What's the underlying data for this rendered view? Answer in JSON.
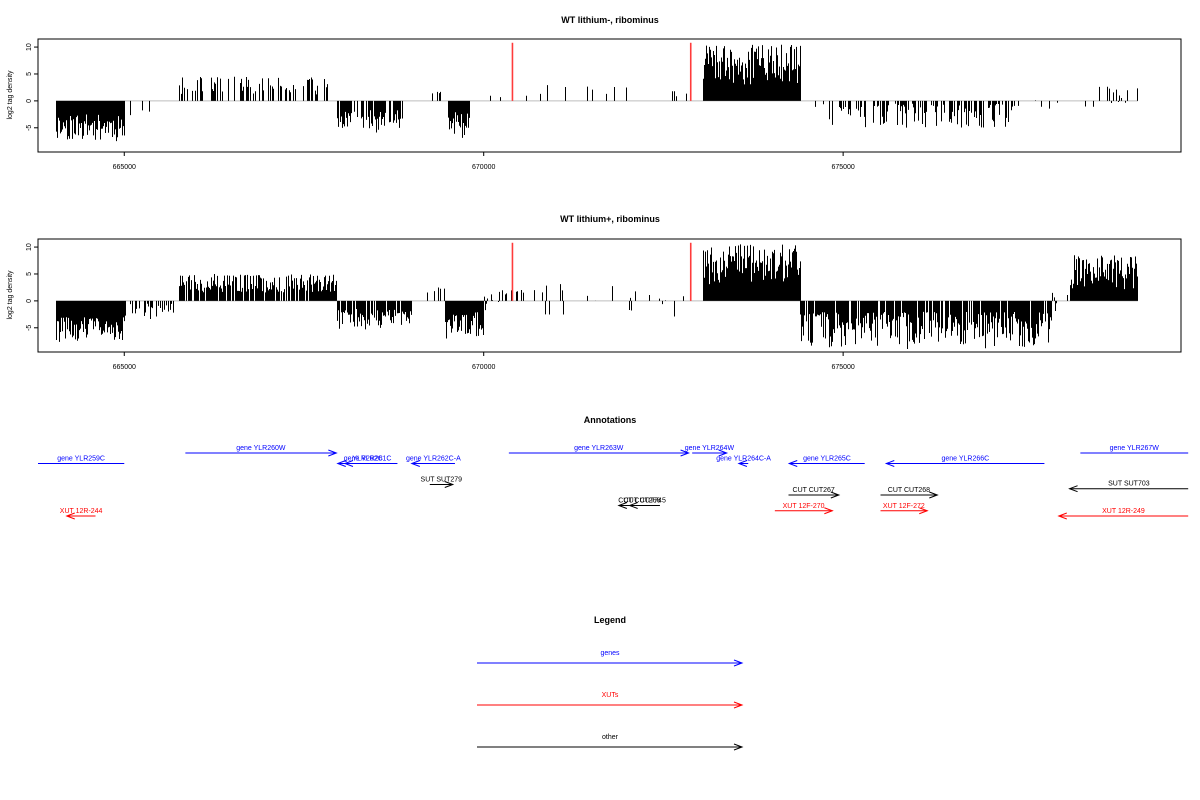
{
  "chart_data": [
    {
      "type": "bar",
      "title": "WT lithium-, ribominus",
      "ylabel": "log2 tag density",
      "xlim": [
        663800,
        679700
      ],
      "ylim": [
        -9.5,
        11.5
      ],
      "xticks": [
        665000,
        670000,
        675000
      ],
      "yticks": [
        -5,
        0,
        5,
        10
      ],
      "red_lines": [
        670400,
        672880
      ],
      "segments": [
        {
          "from": 664050,
          "to": 665000,
          "min": -7.5,
          "max": -2.5,
          "density": 1.0,
          "seed": 11
        },
        {
          "from": 665050,
          "to": 665400,
          "min": -3.0,
          "max": -1.0,
          "density": 0.12,
          "seed": 12
        },
        {
          "from": 665750,
          "to": 667950,
          "min": 1.0,
          "max": 4.5,
          "density": 0.35,
          "seed": 13
        },
        {
          "from": 667950,
          "to": 668900,
          "min": -6.0,
          "max": -1.5,
          "density": 0.55,
          "seed": 14
        },
        {
          "from": 669250,
          "to": 669400,
          "min": 1.0,
          "max": 2.3,
          "density": 0.2,
          "seed": 15
        },
        {
          "from": 669500,
          "to": 669800,
          "min": -7.0,
          "max": -2.0,
          "density": 1.0,
          "seed": 16
        },
        {
          "from": 669900,
          "to": 670350,
          "min": -1.5,
          "max": 1.2,
          "density": 0.1,
          "seed": 17
        },
        {
          "from": 670400,
          "to": 672200,
          "min": 0.5,
          "max": 3.0,
          "density": 0.06,
          "seed": 18
        },
        {
          "from": 672600,
          "to": 672900,
          "min": 0.5,
          "max": 2.0,
          "density": 0.1,
          "seed": 19
        },
        {
          "from": 673050,
          "to": 674400,
          "min": 3.0,
          "max": 10.5,
          "density": 1.0,
          "seed": 20
        },
        {
          "from": 674450,
          "to": 674800,
          "min": -1.5,
          "max": 0.5,
          "density": 0.15,
          "seed": 21
        },
        {
          "from": 674800,
          "to": 677500,
          "min": -5.0,
          "max": -0.5,
          "density": 0.45,
          "seed": 22
        },
        {
          "from": 677500,
          "to": 678000,
          "min": -3.0,
          "max": 0.8,
          "density": 0.12,
          "seed": 23
        },
        {
          "from": 678200,
          "to": 679100,
          "min": -1.5,
          "max": 3.0,
          "density": 0.2,
          "seed": 24
        }
      ]
    },
    {
      "type": "bar",
      "title": "WT lithium+, ribominus",
      "ylabel": "log2 tag density",
      "xlim": [
        663800,
        679700
      ],
      "ylim": [
        -9.5,
        11.5
      ],
      "xticks": [
        665000,
        670000,
        675000
      ],
      "yticks": [
        -5,
        0,
        5,
        10
      ],
      "red_lines": [
        670400,
        672880
      ],
      "segments": [
        {
          "from": 664050,
          "to": 665000,
          "min": -8.0,
          "max": -3.0,
          "density": 1.0,
          "seed": 31
        },
        {
          "from": 665000,
          "to": 665700,
          "min": -3.5,
          "max": -0.5,
          "density": 0.5,
          "seed": 32
        },
        {
          "from": 665750,
          "to": 667950,
          "min": 1.5,
          "max": 5.0,
          "density": 0.8,
          "seed": 33
        },
        {
          "from": 667950,
          "to": 669000,
          "min": -5.5,
          "max": -1.5,
          "density": 0.8,
          "seed": 34
        },
        {
          "from": 669200,
          "to": 669450,
          "min": 0.5,
          "max": 2.5,
          "density": 0.4,
          "seed": 35
        },
        {
          "from": 669450,
          "to": 670000,
          "min": -7.0,
          "max": -2.0,
          "density": 1.0,
          "seed": 36
        },
        {
          "from": 670000,
          "to": 670400,
          "min": -2.0,
          "max": 2.0,
          "density": 0.3,
          "seed": 37
        },
        {
          "from": 670400,
          "to": 672950,
          "min": -4.0,
          "max": 3.5,
          "density": 0.12,
          "seed": 38
        },
        {
          "from": 673050,
          "to": 674400,
          "min": 3.0,
          "max": 10.5,
          "density": 1.0,
          "seed": 39
        },
        {
          "from": 674400,
          "to": 677900,
          "min": -9.0,
          "max": -2.0,
          "density": 0.9,
          "seed": 40
        },
        {
          "from": 677900,
          "to": 678150,
          "min": -2.0,
          "max": 1.5,
          "density": 0.3,
          "seed": 41
        },
        {
          "from": 678150,
          "to": 679100,
          "min": 2.0,
          "max": 8.5,
          "density": 1.0,
          "seed": 42
        }
      ]
    }
  ],
  "annotations": {
    "title": "Annotations",
    "items": [
      {
        "label": "gene YLR259C",
        "from": 663800,
        "to": 665000,
        "row": 1,
        "dir": "none",
        "color": "#0000ff"
      },
      {
        "label": "gene YLR260W",
        "from": 665850,
        "to": 667950,
        "row": 0,
        "dir": "right",
        "color": "#0000ff"
      },
      {
        "label": "gene YLR261C",
        "from": 667970,
        "to": 668800,
        "row": 1,
        "dir": "left",
        "color": "#0000ff"
      },
      {
        "label": "YLR262C",
        "from": 668070,
        "to": 668700,
        "row": 1,
        "dir": "left",
        "color": "#0000ff"
      },
      {
        "label": "gene YLR262C-A",
        "from": 669000,
        "to": 669600,
        "row": 1,
        "dir": "left",
        "color": "#0000ff"
      },
      {
        "label": "gene YLR263W",
        "from": 670350,
        "to": 672850,
        "row": 0,
        "dir": "right",
        "color": "#0000ff"
      },
      {
        "label": "gene YLR264W",
        "from": 672900,
        "to": 673380,
        "row": 0,
        "dir": "right",
        "color": "#0000ff"
      },
      {
        "label": "gene YLR264C-A",
        "from": 673550,
        "to": 673680,
        "row": 1,
        "dir": "left",
        "color": "#0000ff"
      },
      {
        "label": "gene YLR265C",
        "from": 674250,
        "to": 675300,
        "row": 1,
        "dir": "left",
        "color": "#0000ff"
      },
      {
        "label": "gene YLR266C",
        "from": 675600,
        "to": 677800,
        "row": 1,
        "dir": "left",
        "color": "#0000ff"
      },
      {
        "label": "gene YLR267W",
        "from": 678300,
        "to": 679800,
        "row": 0,
        "dir": "none",
        "color": "#0000ff"
      },
      {
        "label": "SUT SUT279",
        "from": 669250,
        "to": 669570,
        "row": 3,
        "dir": "right",
        "color": "#000000"
      },
      {
        "label": "CUT CUT267",
        "from": 674240,
        "to": 674940,
        "row": 4,
        "dir": "right",
        "color": "#000000"
      },
      {
        "label": "CUT CUT268",
        "from": 675520,
        "to": 676310,
        "row": 4,
        "dir": "right",
        "color": "#000000"
      },
      {
        "label": "SUT SUT703",
        "from": 678150,
        "to": 679800,
        "row": 3.4,
        "dir": "left",
        "color": "#000000"
      },
      {
        "label": "CUT CUT745",
        "from": 672030,
        "to": 672450,
        "row": 5,
        "dir": "left",
        "color": "#000000"
      },
      {
        "label": "CUT CUT266",
        "from": 671880,
        "to": 672450,
        "row": 5,
        "dir": "left",
        "color": "#000000"
      },
      {
        "label": "XUT 12R-244",
        "from": 664200,
        "to": 664600,
        "row": 6,
        "dir": "left",
        "color": "#ff0000"
      },
      {
        "label": "XUT 12F-270",
        "from": 674050,
        "to": 674850,
        "row": 5.5,
        "dir": "right",
        "color": "#ff0000"
      },
      {
        "label": "XUT 12F-272",
        "from": 675520,
        "to": 676170,
        "row": 5.5,
        "dir": "right",
        "color": "#ff0000"
      },
      {
        "label": "XUT 12R-249",
        "from": 678000,
        "to": 679800,
        "row": 6,
        "dir": "left",
        "color": "#ff0000"
      }
    ]
  },
  "legend": {
    "title": "Legend",
    "items": [
      {
        "label": "genes",
        "color": "#0000ff"
      },
      {
        "label": "XUTs",
        "color": "#ff0000"
      },
      {
        "label": "other",
        "color": "#000000"
      }
    ]
  }
}
